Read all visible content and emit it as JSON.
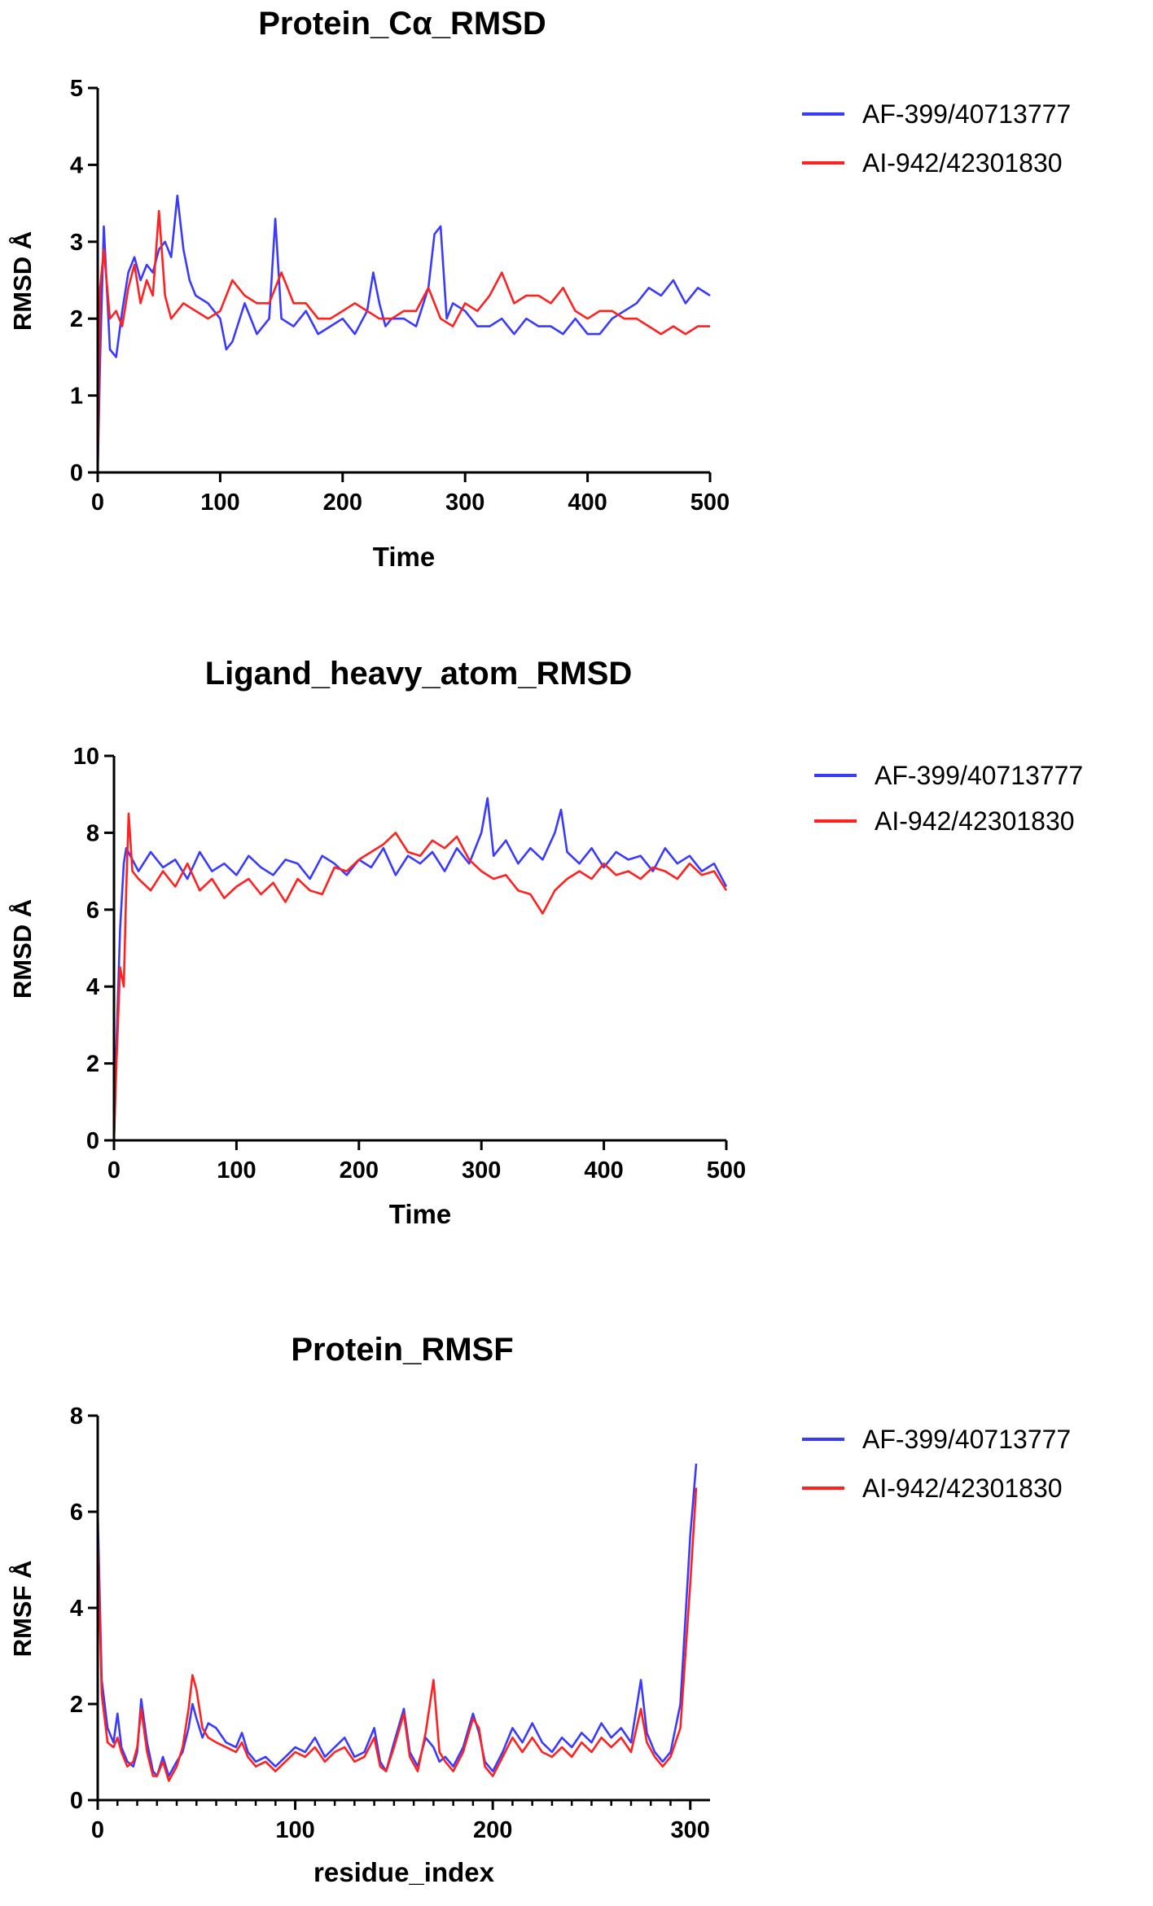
{
  "chart_data": [
    {
      "type": "line",
      "title": "Protein_Cα_RMSD",
      "xlabel": "Time",
      "ylabel": "RMSD Å",
      "xlim": [
        0,
        500
      ],
      "ylim": [
        0,
        5
      ],
      "xticks": [
        "0",
        "100",
        "200",
        "300",
        "400",
        "500"
      ],
      "yticks": [
        "0",
        "1",
        "2",
        "3",
        "4",
        "5"
      ],
      "grid": false,
      "legend_position": "top-right, outside plot",
      "series": [
        {
          "name": "AF-399/40713777",
          "color": "#3a3aff",
          "x": [
            0,
            2,
            5,
            10,
            15,
            20,
            25,
            30,
            35,
            40,
            45,
            50,
            55,
            60,
            65,
            70,
            75,
            80,
            90,
            100,
            105,
            110,
            120,
            130,
            140,
            145,
            150,
            160,
            170,
            180,
            190,
            200,
            210,
            220,
            225,
            230,
            235,
            240,
            250,
            260,
            270,
            275,
            280,
            285,
            290,
            300,
            310,
            320,
            330,
            340,
            350,
            360,
            370,
            380,
            390,
            400,
            410,
            420,
            430,
            440,
            450,
            460,
            470,
            480,
            490,
            500
          ],
          "y": [
            0,
            1.5,
            3.2,
            1.6,
            1.5,
            2.1,
            2.6,
            2.8,
            2.5,
            2.7,
            2.6,
            2.9,
            3.0,
            2.8,
            3.6,
            2.9,
            2.5,
            2.3,
            2.2,
            2.0,
            1.6,
            1.7,
            2.2,
            1.8,
            2.0,
            3.3,
            2.0,
            1.9,
            2.1,
            1.8,
            1.9,
            2.0,
            1.8,
            2.1,
            2.6,
            2.2,
            1.9,
            2.0,
            2.0,
            1.9,
            2.4,
            3.1,
            3.2,
            2.0,
            2.2,
            2.1,
            1.9,
            1.9,
            2.0,
            1.8,
            2.0,
            1.9,
            1.9,
            1.8,
            2.0,
            1.8,
            1.8,
            2.0,
            2.1,
            2.2,
            2.4,
            2.3,
            2.5,
            2.2,
            2.4,
            2.3
          ]
        },
        {
          "name": "AI-942/42301830",
          "color": "#ff2020",
          "x": [
            0,
            2,
            5,
            10,
            15,
            20,
            25,
            30,
            35,
            40,
            45,
            50,
            55,
            60,
            70,
            80,
            90,
            100,
            110,
            120,
            130,
            140,
            150,
            160,
            170,
            180,
            190,
            200,
            210,
            220,
            230,
            240,
            250,
            260,
            270,
            280,
            290,
            300,
            310,
            320,
            330,
            340,
            350,
            360,
            370,
            380,
            390,
            400,
            410,
            420,
            430,
            440,
            450,
            460,
            470,
            480,
            490,
            500
          ],
          "y": [
            0,
            2.4,
            2.9,
            2.0,
            2.1,
            1.9,
            2.4,
            2.7,
            2.2,
            2.5,
            2.3,
            3.4,
            2.3,
            2.0,
            2.2,
            2.1,
            2.0,
            2.1,
            2.5,
            2.3,
            2.2,
            2.2,
            2.6,
            2.2,
            2.2,
            2.0,
            2.0,
            2.1,
            2.2,
            2.1,
            2.0,
            2.0,
            2.1,
            2.1,
            2.4,
            2.0,
            1.9,
            2.2,
            2.1,
            2.3,
            2.6,
            2.2,
            2.3,
            2.3,
            2.2,
            2.4,
            2.1,
            2.0,
            2.1,
            2.1,
            2.0,
            2.0,
            1.9,
            1.8,
            1.9,
            1.8,
            1.9,
            1.9
          ]
        }
      ]
    },
    {
      "type": "line",
      "title": "Ligand_heavy_atom_RMSD",
      "xlabel": "Time",
      "ylabel": "RMSD Å",
      "xlim": [
        0,
        500
      ],
      "ylim": [
        0,
        10
      ],
      "xticks": [
        "0",
        "100",
        "200",
        "300",
        "400",
        "500"
      ],
      "yticks": [
        "0",
        "2",
        "4",
        "6",
        "8",
        "10"
      ],
      "grid": false,
      "legend_position": "top-right, outside plot",
      "series": [
        {
          "name": "AF-399/40713777",
          "color": "#3a3aff",
          "x": [
            0,
            2,
            5,
            8,
            10,
            15,
            20,
            30,
            40,
            50,
            60,
            70,
            80,
            90,
            100,
            110,
            120,
            130,
            140,
            150,
            160,
            170,
            180,
            190,
            200,
            210,
            220,
            230,
            240,
            250,
            260,
            270,
            280,
            290,
            300,
            305,
            310,
            320,
            330,
            340,
            350,
            360,
            365,
            370,
            380,
            390,
            400,
            410,
            420,
            430,
            440,
            450,
            460,
            470,
            480,
            490,
            500
          ],
          "y": [
            0,
            2.5,
            5.5,
            7.2,
            7.6,
            7.3,
            7.0,
            7.5,
            7.1,
            7.3,
            6.8,
            7.5,
            7.0,
            7.2,
            6.9,
            7.4,
            7.1,
            6.9,
            7.3,
            7.2,
            6.8,
            7.4,
            7.2,
            6.9,
            7.3,
            7.1,
            7.6,
            6.9,
            7.4,
            7.2,
            7.5,
            7.0,
            7.6,
            7.2,
            8.0,
            8.9,
            7.4,
            7.8,
            7.2,
            7.6,
            7.3,
            8.0,
            8.6,
            7.5,
            7.2,
            7.6,
            7.1,
            7.5,
            7.3,
            7.4,
            7.0,
            7.6,
            7.2,
            7.4,
            7.0,
            7.2,
            6.6
          ]
        },
        {
          "name": "AI-942/42301830",
          "color": "#ff2020",
          "x": [
            0,
            2,
            5,
            8,
            10,
            12,
            15,
            20,
            30,
            40,
            50,
            60,
            70,
            80,
            90,
            100,
            110,
            120,
            130,
            140,
            150,
            160,
            170,
            180,
            190,
            200,
            210,
            220,
            230,
            240,
            250,
            260,
            270,
            280,
            290,
            300,
            310,
            320,
            330,
            340,
            350,
            360,
            370,
            380,
            390,
            400,
            410,
            420,
            430,
            440,
            450,
            460,
            470,
            480,
            490,
            500
          ],
          "y": [
            0,
            2.0,
            4.5,
            4.0,
            6.5,
            8.5,
            7.0,
            6.8,
            6.5,
            7.0,
            6.6,
            7.2,
            6.5,
            6.8,
            6.3,
            6.6,
            6.8,
            6.4,
            6.7,
            6.2,
            6.8,
            6.5,
            6.4,
            7.1,
            7.0,
            7.3,
            7.5,
            7.7,
            8.0,
            7.5,
            7.4,
            7.8,
            7.6,
            7.9,
            7.3,
            7.0,
            6.8,
            6.9,
            6.5,
            6.4,
            5.9,
            6.5,
            6.8,
            7.0,
            6.8,
            7.2,
            6.9,
            7.0,
            6.8,
            7.1,
            7.0,
            6.8,
            7.2,
            6.9,
            7.0,
            6.5
          ]
        }
      ]
    },
    {
      "type": "line",
      "title": "Protein_RMSF",
      "xlabel": "residue_index",
      "ylabel": "RMSF Å",
      "xlim": [
        0,
        310
      ],
      "ylim": [
        0,
        8
      ],
      "xticks": [
        "0",
        "100",
        "200",
        "300"
      ],
      "yticks": [
        "0",
        "2",
        "4",
        "6",
        "8"
      ],
      "grid": false,
      "legend_position": "top-right, outside plot",
      "series": [
        {
          "name": "AF-399/40713777",
          "color": "#3a3aff",
          "x": [
            0,
            2,
            5,
            8,
            10,
            12,
            15,
            18,
            20,
            22,
            25,
            28,
            30,
            33,
            36,
            40,
            43,
            46,
            48,
            50,
            53,
            56,
            60,
            65,
            70,
            73,
            76,
            80,
            85,
            90,
            95,
            100,
            105,
            110,
            115,
            120,
            125,
            130,
            135,
            140,
            143,
            146,
            150,
            155,
            158,
            162,
            166,
            170,
            173,
            176,
            180,
            185,
            190,
            193,
            196,
            200,
            205,
            210,
            215,
            220,
            225,
            230,
            235,
            240,
            245,
            250,
            255,
            260,
            265,
            270,
            275,
            278,
            282,
            286,
            290,
            295,
            300,
            303
          ],
          "y": [
            6.0,
            2.5,
            1.5,
            1.2,
            1.8,
            1.1,
            0.8,
            0.7,
            1.0,
            2.1,
            1.2,
            0.6,
            0.5,
            0.9,
            0.5,
            0.8,
            1.0,
            1.5,
            2.0,
            1.7,
            1.3,
            1.6,
            1.5,
            1.2,
            1.1,
            1.4,
            1.0,
            0.8,
            0.9,
            0.7,
            0.9,
            1.1,
            1.0,
            1.3,
            0.9,
            1.1,
            1.3,
            0.9,
            1.0,
            1.5,
            0.8,
            0.6,
            1.2,
            1.9,
            1.0,
            0.7,
            1.3,
            1.1,
            0.8,
            0.9,
            0.7,
            1.1,
            1.8,
            1.4,
            0.8,
            0.6,
            1.0,
            1.5,
            1.2,
            1.6,
            1.2,
            1.0,
            1.3,
            1.1,
            1.4,
            1.2,
            1.6,
            1.3,
            1.5,
            1.2,
            2.5,
            1.4,
            1.0,
            0.8,
            1.0,
            2.0,
            5.5,
            7.0
          ]
        },
        {
          "name": "AI-942/42301830",
          "color": "#ff2020",
          "x": [
            0,
            2,
            5,
            8,
            10,
            12,
            15,
            18,
            20,
            22,
            25,
            28,
            30,
            33,
            36,
            40,
            43,
            46,
            48,
            50,
            53,
            56,
            60,
            65,
            70,
            73,
            76,
            80,
            85,
            90,
            95,
            100,
            105,
            110,
            115,
            120,
            125,
            130,
            135,
            140,
            143,
            146,
            150,
            155,
            158,
            162,
            166,
            170,
            173,
            176,
            180,
            185,
            190,
            193,
            196,
            200,
            205,
            210,
            215,
            220,
            225,
            230,
            235,
            240,
            245,
            250,
            255,
            260,
            265,
            270,
            275,
            278,
            282,
            286,
            290,
            295,
            300,
            303
          ],
          "y": [
            5.5,
            2.2,
            1.2,
            1.1,
            1.3,
            1.0,
            0.7,
            0.8,
            1.1,
            1.9,
            1.0,
            0.5,
            0.5,
            0.8,
            0.4,
            0.7,
            1.1,
            1.9,
            2.6,
            2.3,
            1.5,
            1.3,
            1.2,
            1.1,
            1.0,
            1.2,
            0.9,
            0.7,
            0.8,
            0.6,
            0.8,
            1.0,
            0.9,
            1.1,
            0.8,
            1.0,
            1.1,
            0.8,
            0.9,
            1.3,
            0.7,
            0.6,
            1.1,
            1.8,
            0.9,
            0.6,
            1.4,
            2.5,
            1.0,
            0.8,
            0.6,
            1.0,
            1.7,
            1.5,
            0.7,
            0.5,
            0.9,
            1.3,
            1.0,
            1.3,
            1.0,
            0.9,
            1.1,
            0.9,
            1.2,
            1.0,
            1.3,
            1.1,
            1.3,
            1.0,
            1.9,
            1.2,
            0.9,
            0.7,
            0.9,
            1.5,
            4.5,
            6.5
          ]
        }
      ]
    }
  ]
}
